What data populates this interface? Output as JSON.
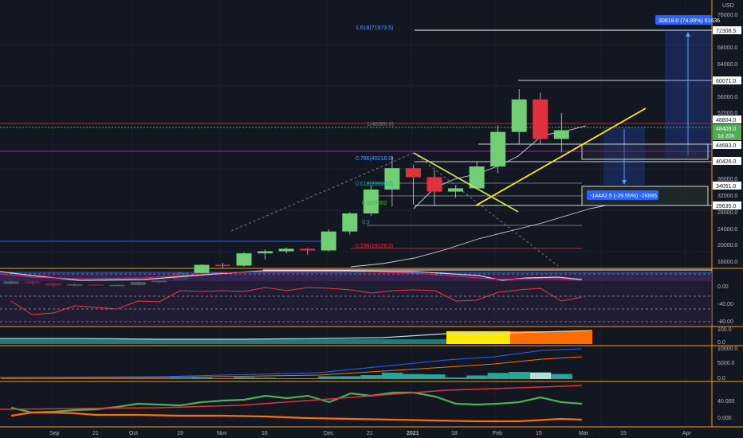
{
  "currency": "USD",
  "colors": {
    "bg": "#131722",
    "up": "#6fcf72",
    "down": "#e0313d",
    "trendline": "#ffea00",
    "ma_white": "#d1d4dc",
    "fib_blue": "#5b9cf6",
    "measure": "#2962ff",
    "rsi": "#f23645",
    "vol_teal": "#26a69a",
    "orange": "#ff6d00",
    "green_line": "#4caf50"
  },
  "price_axis": {
    "ticks": [
      "76000.0",
      "68000.0",
      "64000.0",
      "56000.0",
      "52000.0",
      "36000.0",
      "32000.0",
      "28000.0",
      "24000.0",
      "20000.0",
      "16000.0"
    ],
    "tags": [
      {
        "text": "72308.5",
        "style": "white"
      },
      {
        "text": "60071.0",
        "style": "white"
      },
      {
        "text": "48804.0",
        "style": "white"
      },
      {
        "text": "48409.0",
        "style": "green"
      },
      {
        "text": "1d 20h",
        "style": "green"
      },
      {
        "text": "44683.0",
        "style": "white"
      },
      {
        "text": "40426.0",
        "style": "white"
      },
      {
        "text": "34051.0",
        "style": "white"
      },
      {
        "text": "29635.0",
        "style": "white"
      }
    ]
  },
  "measure_up_label": "30818.0 (74.89%) 61636",
  "measure_down_label": "-14442.5 (-29.55%) -28885",
  "fib_labels": [
    {
      "text": "1.618(71973.5)",
      "color": "#5b9cf6"
    },
    {
      "text": "1(48386.0)",
      "color": "#787b86"
    },
    {
      "text": "0.786(40218.0)",
      "color": "#5b9cf6"
    },
    {
      "text": "0.618(33806.0)",
      "color": "#26a69a"
    },
    {
      "text": "0.5(29302",
      "color": "#4caf50"
    },
    {
      "text": "0.3",
      "color": "#26a69a"
    },
    {
      "text": "0.236(19226.0)",
      "color": "#e0313d"
    }
  ],
  "rsi_axis": [
    "0.00",
    "-40.00",
    "-80.00"
  ],
  "pane3_axis": [
    "100.0",
    "0.0"
  ],
  "pane4_axis": [
    "10000.0",
    "5000.0",
    "0.0"
  ],
  "pane5_axis": [
    "40.000",
    "0.000"
  ],
  "time_axis": [
    "Sep",
    "21",
    "Oct",
    "19",
    "Nov",
    "16",
    "Dec",
    "21",
    "2021",
    "18",
    "Feb",
    "15",
    "Mar",
    "15",
    "Apr"
  ],
  "chart_data": {
    "type": "candlestick",
    "interval": "weekly",
    "candles": [
      {
        "o": 11100,
        "h": 12300,
        "l": 10800,
        "c": 11650
      },
      {
        "o": 11650,
        "h": 11800,
        "l": 10900,
        "c": 11200
      },
      {
        "o": 11200,
        "h": 11300,
        "l": 10300,
        "c": 10700
      },
      {
        "o": 10700,
        "h": 11200,
        "l": 10450,
        "c": 10950
      },
      {
        "o": 10950,
        "h": 11100,
        "l": 10600,
        "c": 10750
      },
      {
        "o": 10750,
        "h": 11000,
        "l": 10500,
        "c": 10800
      },
      {
        "o": 10800,
        "h": 11700,
        "l": 10600,
        "c": 11500
      },
      {
        "o": 11500,
        "h": 12200,
        "l": 11200,
        "c": 12000
      },
      {
        "o": 12000,
        "h": 13900,
        "l": 11800,
        "c": 13700
      },
      {
        "o": 13700,
        "h": 15900,
        "l": 13200,
        "c": 15700
      },
      {
        "o": 15700,
        "h": 16200,
        "l": 14900,
        "c": 15500
      },
      {
        "o": 15500,
        "h": 18800,
        "l": 15300,
        "c": 18500
      },
      {
        "o": 18500,
        "h": 19400,
        "l": 17000,
        "c": 19000
      },
      {
        "o": 19000,
        "h": 19900,
        "l": 18500,
        "c": 19600
      },
      {
        "o": 19600,
        "h": 19800,
        "l": 18200,
        "c": 19200
      },
      {
        "o": 19200,
        "h": 24300,
        "l": 19000,
        "c": 23800
      },
      {
        "o": 23800,
        "h": 28500,
        "l": 23100,
        "c": 28200
      },
      {
        "o": 28200,
        "h": 35000,
        "l": 27600,
        "c": 34000
      },
      {
        "o": 34000,
        "h": 42000,
        "l": 29900,
        "c": 39200
      },
      {
        "o": 39200,
        "h": 40000,
        "l": 30400,
        "c": 37000
      },
      {
        "o": 37000,
        "h": 38800,
        "l": 30000,
        "c": 33500
      },
      {
        "o": 33500,
        "h": 34900,
        "l": 32000,
        "c": 34300
      },
      {
        "o": 34300,
        "h": 40800,
        "l": 34000,
        "c": 39600
      },
      {
        "o": 39600,
        "h": 49600,
        "l": 38000,
        "c": 48000
      },
      {
        "o": 48000,
        "h": 58400,
        "l": 45000,
        "c": 55900
      },
      {
        "o": 55900,
        "h": 57500,
        "l": 45000,
        "c": 46300
      },
      {
        "o": 46300,
        "h": 52600,
        "l": 43000,
        "c": 48409
      }
    ],
    "ylim": [
      14000,
      78000
    ]
  }
}
